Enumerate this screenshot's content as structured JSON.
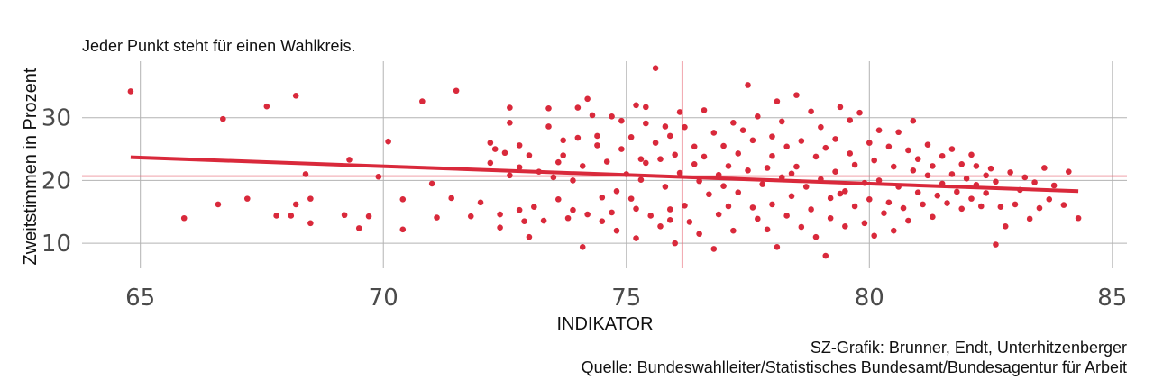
{
  "chart_data": {
    "type": "scatter",
    "title": "",
    "subtitle": "Jeder Punkt steht für einen Wahlkreis.",
    "xlabel": "INDIKATOR",
    "ylabel": "Zweitstimmen in Prozent",
    "xlim": [
      63.8,
      85.3
    ],
    "ylim": [
      6,
      39
    ],
    "x_ticks": [
      65,
      70,
      75,
      80,
      85
    ],
    "y_ticks": [
      10,
      20,
      30
    ],
    "grid": true,
    "point_color": "#d9293b",
    "trend_color": "#d9293b",
    "reference_color": "#e86a78",
    "reference_lines": {
      "x_mean": 76.15,
      "y_mean": 20.7
    },
    "trend_line": {
      "x": [
        64.8,
        84.3
      ],
      "y": [
        23.7,
        18.3
      ]
    },
    "points": [
      [
        64.8,
        34.2
      ],
      [
        65.9,
        14.0
      ],
      [
        66.6,
        16.2
      ],
      [
        66.7,
        29.8
      ],
      [
        67.2,
        17.1
      ],
      [
        67.6,
        31.8
      ],
      [
        67.8,
        14.4
      ],
      [
        68.1,
        14.4
      ],
      [
        68.2,
        33.5
      ],
      [
        68.2,
        16.2
      ],
      [
        68.4,
        21.0
      ],
      [
        68.5,
        17.1
      ],
      [
        68.5,
        13.2
      ],
      [
        69.2,
        14.5
      ],
      [
        69.3,
        23.3
      ],
      [
        69.5,
        12.4
      ],
      [
        69.7,
        14.3
      ],
      [
        69.9,
        20.6
      ],
      [
        70.1,
        26.2
      ],
      [
        70.4,
        17.0
      ],
      [
        70.4,
        12.2
      ],
      [
        70.8,
        32.6
      ],
      [
        71.0,
        19.5
      ],
      [
        71.1,
        14.1
      ],
      [
        71.4,
        17.2
      ],
      [
        71.5,
        34.3
      ],
      [
        71.8,
        14.3
      ],
      [
        72.0,
        16.5
      ],
      [
        72.2,
        22.8
      ],
      [
        72.2,
        26.0
      ],
      [
        72.3,
        25.0
      ],
      [
        72.4,
        12.5
      ],
      [
        72.4,
        14.6
      ],
      [
        72.5,
        24.4
      ],
      [
        72.6,
        29.2
      ],
      [
        72.6,
        31.6
      ],
      [
        72.6,
        20.8
      ],
      [
        72.8,
        22.1
      ],
      [
        72.8,
        15.3
      ],
      [
        72.8,
        25.6
      ],
      [
        72.9,
        13.5
      ],
      [
        73.0,
        11.0
      ],
      [
        73.0,
        24.0
      ],
      [
        73.1,
        15.8
      ],
      [
        73.2,
        21.4
      ],
      [
        73.3,
        13.6
      ],
      [
        73.4,
        31.5
      ],
      [
        73.4,
        28.6
      ],
      [
        73.5,
        20.5
      ],
      [
        73.6,
        17.0
      ],
      [
        73.7,
        26.4
      ],
      [
        73.7,
        24.0
      ],
      [
        73.8,
        14.0
      ],
      [
        73.9,
        20.0
      ],
      [
        73.9,
        15.3
      ],
      [
        74.0,
        31.6
      ],
      [
        74.0,
        26.8
      ],
      [
        74.1,
        9.4
      ],
      [
        74.1,
        22.3
      ],
      [
        74.2,
        33.0
      ],
      [
        74.2,
        14.6
      ],
      [
        74.3,
        30.4
      ],
      [
        74.4,
        27.1
      ],
      [
        74.4,
        25.6
      ],
      [
        74.5,
        17.3
      ],
      [
        74.5,
        13.5
      ],
      [
        74.6,
        23.0
      ],
      [
        74.7,
        30.2
      ],
      [
        74.7,
        14.9
      ],
      [
        74.8,
        12.0
      ],
      [
        74.9,
        29.5
      ],
      [
        74.9,
        25.0
      ],
      [
        75.0,
        21.0
      ],
      [
        75.1,
        26.9
      ],
      [
        75.1,
        17.1
      ],
      [
        75.2,
        32.0
      ],
      [
        75.2,
        15.5
      ],
      [
        75.2,
        10.8
      ],
      [
        75.3,
        23.4
      ],
      [
        75.4,
        29.1
      ],
      [
        75.4,
        31.7
      ],
      [
        75.4,
        22.8
      ],
      [
        75.5,
        14.4
      ],
      [
        75.6,
        37.9
      ],
      [
        75.6,
        26.0
      ],
      [
        75.7,
        23.4
      ],
      [
        75.7,
        12.7
      ],
      [
        75.8,
        28.6
      ],
      [
        75.8,
        19.0
      ],
      [
        75.9,
        15.4
      ],
      [
        75.9,
        27.1
      ],
      [
        75.9,
        13.7
      ],
      [
        76.0,
        24.1
      ],
      [
        76.0,
        10.0
      ],
      [
        76.1,
        30.9
      ],
      [
        76.1,
        21.2
      ],
      [
        76.2,
        28.5
      ],
      [
        76.2,
        16.0
      ],
      [
        76.3,
        13.4
      ],
      [
        76.4,
        25.4
      ],
      [
        76.5,
        19.9
      ],
      [
        76.5,
        11.5
      ],
      [
        76.6,
        31.2
      ],
      [
        76.6,
        23.8
      ],
      [
        76.7,
        17.8
      ],
      [
        76.8,
        27.6
      ],
      [
        76.8,
        9.1
      ],
      [
        76.9,
        20.9
      ],
      [
        76.9,
        14.6
      ],
      [
        77.0,
        25.5
      ],
      [
        77.1,
        22.3
      ],
      [
        77.1,
        15.9
      ],
      [
        77.2,
        29.2
      ],
      [
        77.2,
        12.0
      ],
      [
        77.3,
        24.3
      ],
      [
        77.3,
        18.1
      ],
      [
        77.4,
        28.0
      ],
      [
        77.5,
        35.2
      ],
      [
        77.5,
        21.6
      ],
      [
        77.6,
        15.7
      ],
      [
        77.6,
        26.4
      ],
      [
        77.7,
        13.9
      ],
      [
        77.7,
        30.2
      ],
      [
        77.8,
        19.4
      ],
      [
        77.9,
        22.0
      ],
      [
        77.9,
        12.2
      ],
      [
        78.0,
        27.0
      ],
      [
        78.0,
        23.9
      ],
      [
        78.0,
        16.2
      ],
      [
        78.1,
        9.4
      ],
      [
        78.1,
        32.6
      ],
      [
        78.2,
        29.4
      ],
      [
        78.2,
        20.5
      ],
      [
        78.3,
        25.4
      ],
      [
        78.3,
        14.4
      ],
      [
        78.4,
        17.5
      ],
      [
        78.5,
        33.6
      ],
      [
        78.5,
        22.2
      ],
      [
        78.6,
        12.6
      ],
      [
        78.6,
        26.3
      ],
      [
        78.7,
        19.0
      ],
      [
        78.8,
        31.0
      ],
      [
        78.8,
        15.4
      ],
      [
        78.9,
        23.8
      ],
      [
        78.9,
        11.0
      ],
      [
        79.0,
        28.5
      ],
      [
        79.0,
        20.2
      ],
      [
        79.1,
        8.0
      ],
      [
        79.1,
        25.2
      ],
      [
        79.2,
        17.2
      ],
      [
        79.2,
        14.0
      ],
      [
        79.3,
        26.6
      ],
      [
        79.3,
        21.4
      ],
      [
        79.4,
        31.7
      ],
      [
        79.5,
        18.3
      ],
      [
        79.5,
        12.7
      ],
      [
        79.6,
        24.3
      ],
      [
        79.6,
        29.6
      ],
      [
        79.7,
        15.9
      ],
      [
        79.7,
        22.5
      ],
      [
        79.8,
        30.8
      ],
      [
        79.9,
        19.6
      ],
      [
        79.9,
        13.2
      ],
      [
        80.0,
        26.0
      ],
      [
        80.0,
        17.0
      ],
      [
        80.1,
        23.2
      ],
      [
        80.1,
        11.2
      ],
      [
        80.2,
        28.0
      ],
      [
        80.2,
        20.0
      ],
      [
        80.3,
        14.8
      ],
      [
        80.4,
        25.4
      ],
      [
        80.4,
        16.5
      ],
      [
        80.5,
        22.2
      ],
      [
        80.5,
        12.0
      ],
      [
        80.6,
        27.7
      ],
      [
        80.6,
        19.0
      ],
      [
        80.7,
        15.6
      ],
      [
        80.8,
        24.8
      ],
      [
        80.8,
        13.6
      ],
      [
        80.9,
        21.6
      ],
      [
        80.9,
        29.5
      ],
      [
        81.0,
        18.1
      ],
      [
        81.0,
        23.4
      ],
      [
        81.1,
        16.2
      ],
      [
        81.2,
        20.8
      ],
      [
        81.2,
        25.7
      ],
      [
        81.3,
        14.2
      ],
      [
        81.3,
        22.3
      ],
      [
        81.4,
        17.6
      ],
      [
        81.5,
        19.5
      ],
      [
        81.5,
        23.9
      ],
      [
        81.6,
        16.4
      ],
      [
        81.7,
        21.0
      ],
      [
        81.7,
        25.0
      ],
      [
        81.8,
        18.2
      ],
      [
        81.9,
        15.5
      ],
      [
        81.9,
        22.6
      ],
      [
        82.0,
        20.3
      ],
      [
        82.1,
        17.1
      ],
      [
        82.1,
        24.1
      ],
      [
        82.2,
        19.3
      ],
      [
        82.2,
        22.3
      ],
      [
        82.3,
        15.9
      ],
      [
        82.4,
        20.8
      ],
      [
        82.4,
        18.0
      ],
      [
        82.5,
        21.9
      ],
      [
        82.6,
        19.8
      ],
      [
        82.6,
        9.8
      ],
      [
        82.7,
        15.8
      ],
      [
        82.8,
        12.7
      ],
      [
        82.9,
        21.3
      ],
      [
        83.0,
        16.2
      ],
      [
        83.1,
        18.5
      ],
      [
        83.2,
        20.5
      ],
      [
        83.3,
        13.9
      ],
      [
        83.4,
        19.7
      ],
      [
        83.5,
        15.6
      ],
      [
        83.6,
        22.0
      ],
      [
        83.7,
        17.0
      ],
      [
        83.8,
        19.2
      ],
      [
        84.0,
        16.1
      ],
      [
        84.1,
        21.4
      ],
      [
        84.3,
        14.0
      ],
      [
        73.6,
        22.9
      ],
      [
        74.8,
        18.3
      ],
      [
        75.3,
        20.1
      ],
      [
        76.4,
        22.6
      ],
      [
        77.0,
        19.1
      ],
      [
        78.4,
        21.1
      ],
      [
        79.4,
        17.9
      ]
    ]
  },
  "credits": {
    "line1": "SZ-Grafik: Brunner, Endt, Unterhitzenberger",
    "line2": "Quelle: Bundeswahlleiter/Statistisches Bundesamt/Bundesagentur für Arbeit"
  }
}
